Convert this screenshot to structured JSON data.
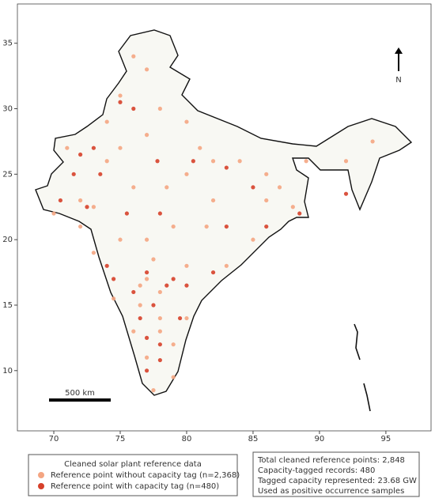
{
  "chart_data": {
    "type": "scatter",
    "xlim": [
      67.26,
      98.4
    ],
    "ylim": [
      5.4,
      38.0
    ],
    "xticks": [
      70,
      75,
      80,
      85,
      90,
      95
    ],
    "yticks": [
      10,
      15,
      20,
      25,
      30,
      35
    ],
    "legend_title": "Cleaned solar plant reference data",
    "series": [
      {
        "name": "Reference point without capacity tag (n=2,368)",
        "color": "#f4a582",
        "x": [
          77,
          78,
          76.5,
          75,
          73,
          72,
          74,
          77,
          80,
          82,
          85,
          79,
          77,
          76,
          78,
          80,
          79,
          73,
          75,
          71,
          84,
          86,
          88,
          92,
          94,
          75,
          77,
          78,
          81,
          83,
          79,
          77.5,
          74.5,
          76,
          72,
          70,
          77,
          80,
          81.5,
          86,
          87,
          89,
          78.5,
          74,
          76,
          80,
          82,
          77.5,
          76.5,
          78
        ],
        "y": [
          17,
          16,
          15,
          20,
          22.5,
          23,
          26,
          28,
          25,
          23,
          20,
          12,
          11,
          13,
          14,
          18,
          21,
          19,
          27,
          27,
          26,
          23,
          22.5,
          26,
          27.5,
          31,
          33,
          30,
          27,
          18,
          9.5,
          8.5,
          15.5,
          24,
          21,
          22,
          20,
          14,
          21,
          25,
          24,
          26,
          24,
          29,
          34,
          29,
          26,
          18.5,
          16.5,
          13
        ]
      },
      {
        "name": "Reference point with capacity tag (n=480)",
        "color": "#d6402a",
        "x": [
          77,
          78.5,
          76,
          77.5,
          78,
          77,
          73,
          72,
          70.5,
          72.5,
          75,
          76,
          79,
          80,
          74,
          78,
          76.5,
          77.8,
          80.5,
          85,
          73.5,
          86,
          83,
          78,
          88.5,
          92,
          74.5,
          79.5,
          77,
          75.5,
          71.5,
          82,
          83
        ],
        "y": [
          17.5,
          16.5,
          16,
          15,
          12,
          10,
          27,
          26.5,
          23,
          22.5,
          30.5,
          30,
          17,
          16.5,
          18,
          10.8,
          14,
          26,
          26,
          24,
          25,
          21,
          25.5,
          22,
          22,
          23.5,
          17,
          14,
          12.5,
          22,
          25,
          17.5,
          21
        ]
      }
    ],
    "annotations": [
      "Total cleaned reference points: 2,848",
      "Capacity-tagged records: 480",
      "Tagged capacity represented: 23.68 GW",
      "Used as positive occurrence samples"
    ],
    "scale_bar_label": "500 km",
    "north_label": "N"
  }
}
